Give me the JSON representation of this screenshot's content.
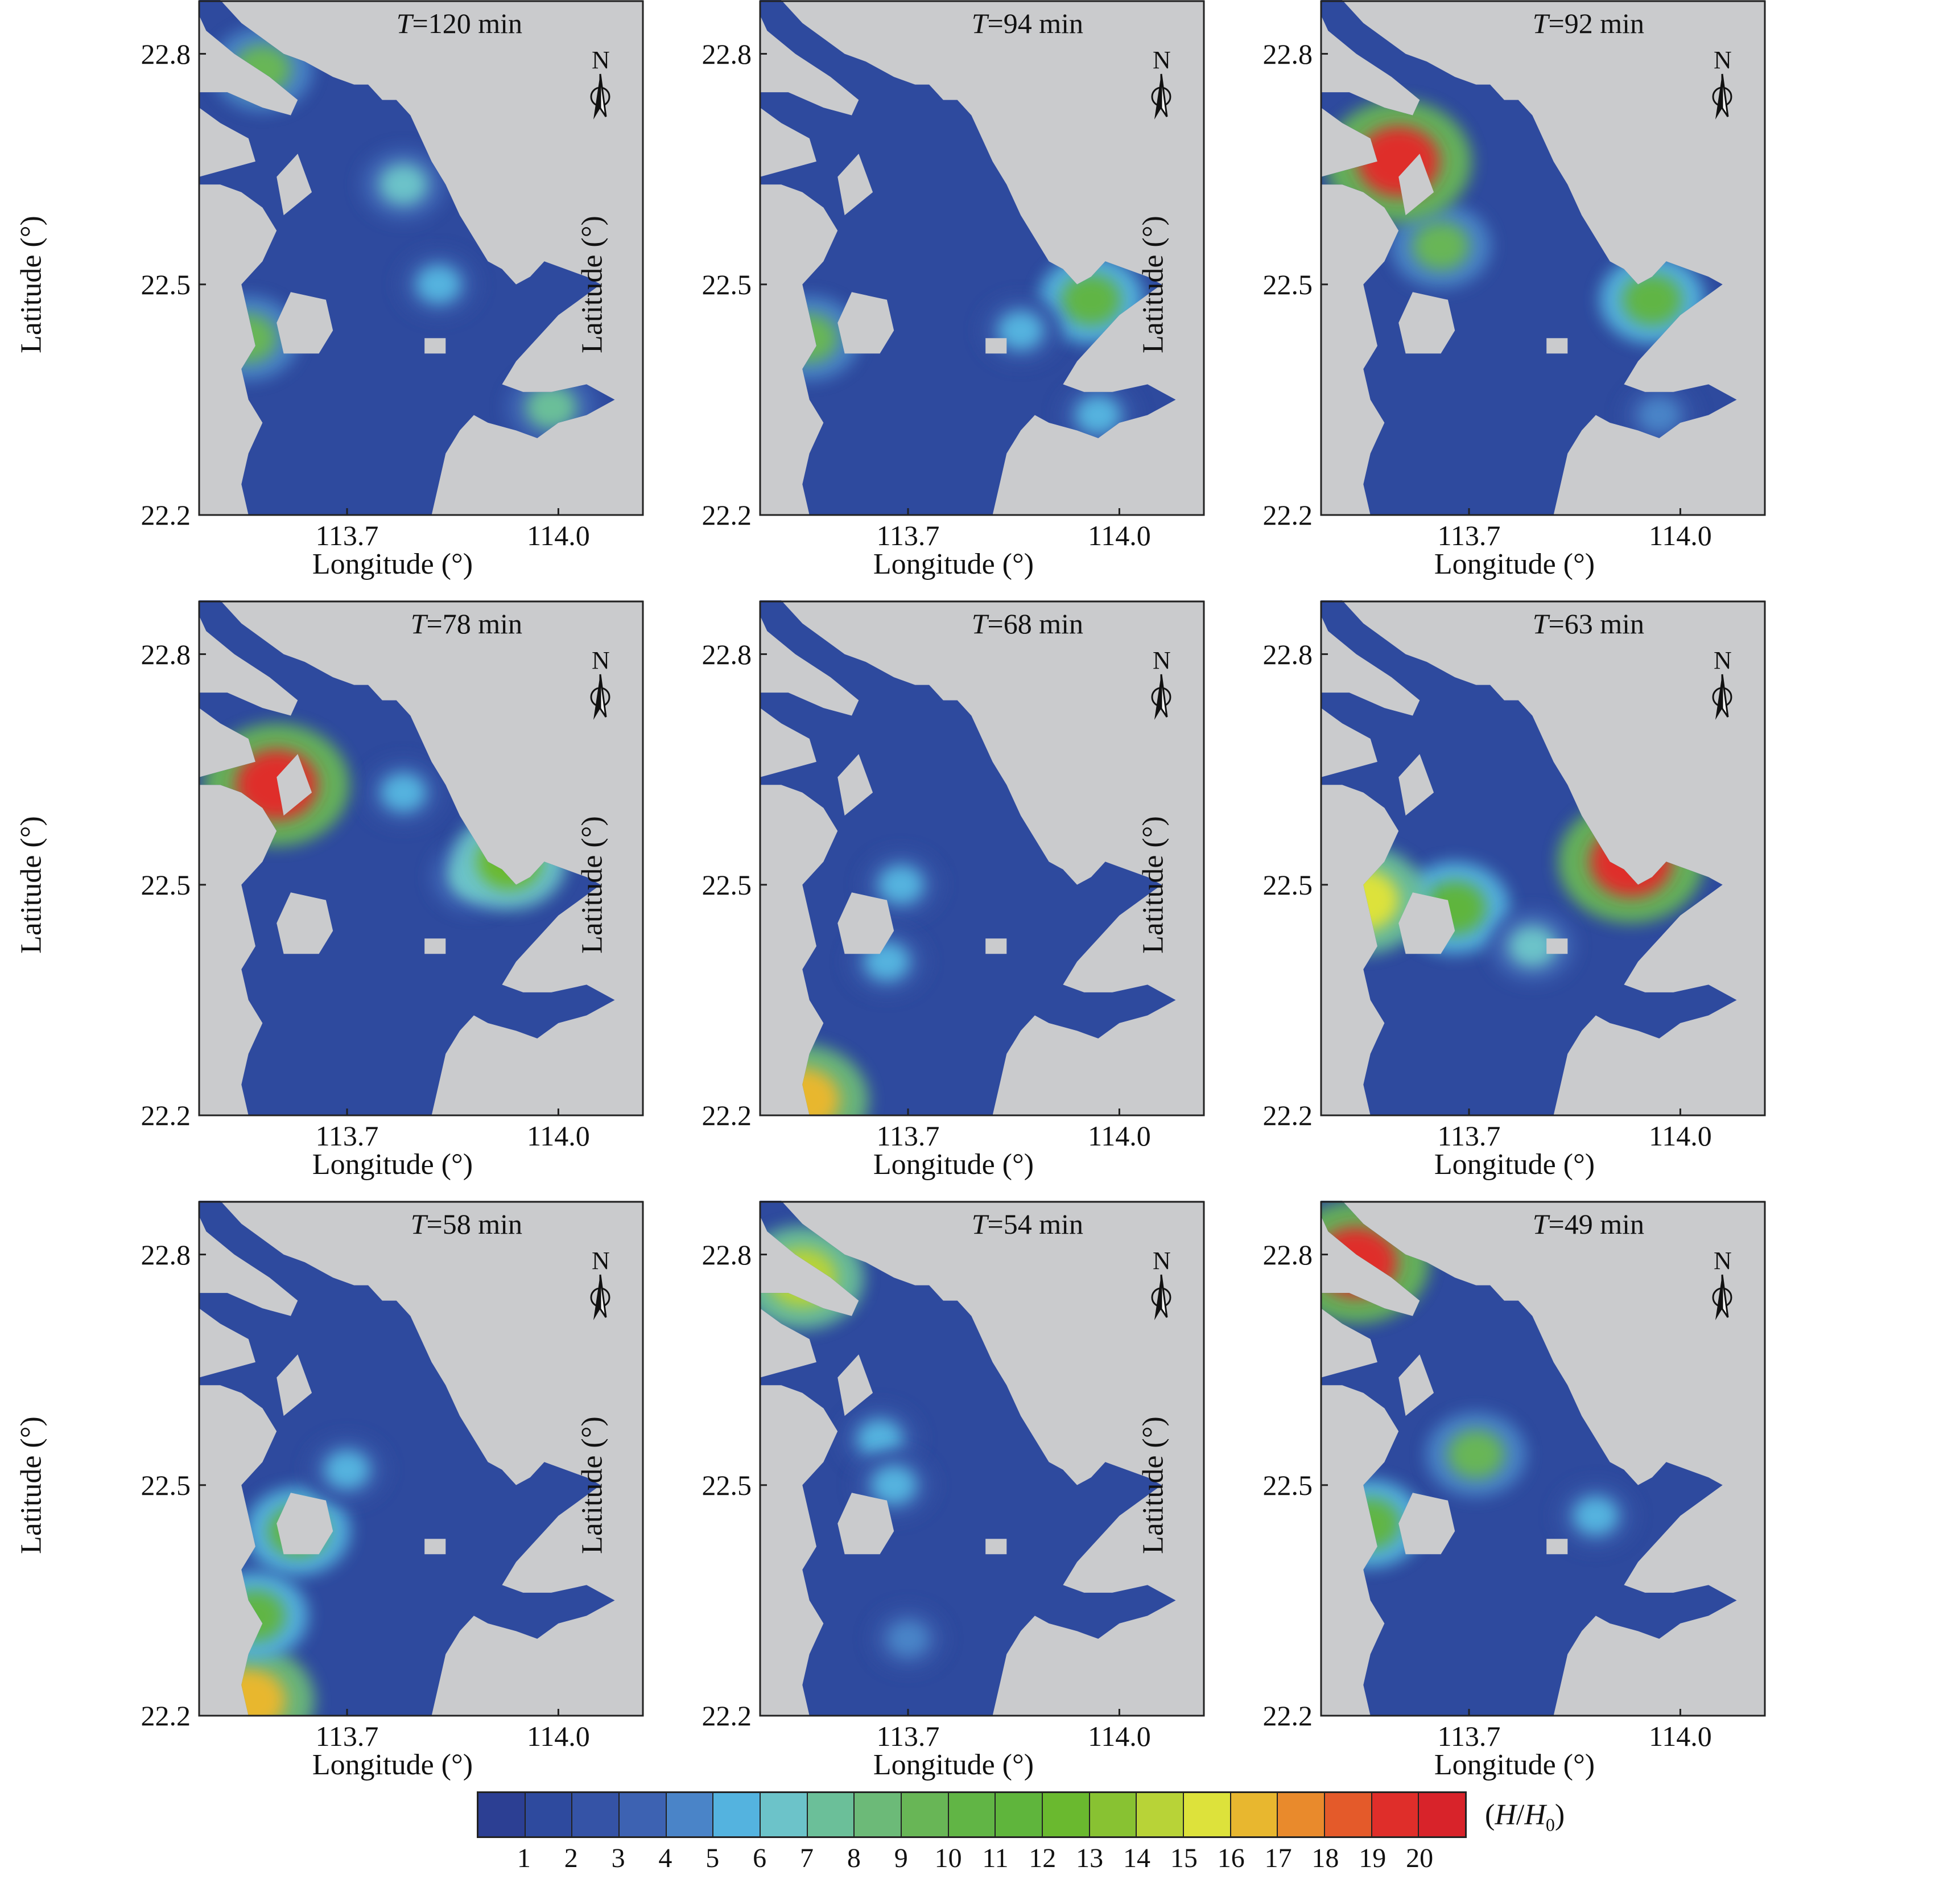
{
  "axis": {
    "xlabel": "Longitude (°)",
    "ylabel": "Latitude (°)",
    "yticks": [
      "22.8",
      "22.5",
      "22.2"
    ],
    "xticks": [
      "113.7",
      "114.0"
    ]
  },
  "panels": [
    {
      "time": "120 min",
      "hotspots": [
        {
          "lon": 113.78,
          "lat": 22.63,
          "level": 6
        },
        {
          "lon": 113.83,
          "lat": 22.5,
          "level": 5
        },
        {
          "lon": 113.99,
          "lat": 22.34,
          "level": 7
        },
        {
          "lon": 113.58,
          "lat": 22.78,
          "level": 9
        },
        {
          "lon": 113.56,
          "lat": 22.43,
          "level": 9
        }
      ]
    },
    {
      "time": "94 min",
      "hotspots": [
        {
          "lon": 113.96,
          "lat": 22.48,
          "level": 10
        },
        {
          "lon": 113.97,
          "lat": 22.33,
          "level": 5
        },
        {
          "lon": 113.56,
          "lat": 22.43,
          "level": 9
        },
        {
          "lon": 113.86,
          "lat": 22.44,
          "level": 5
        }
      ]
    },
    {
      "time": "92 min",
      "hotspots": [
        {
          "lon": 113.66,
          "lat": 22.55,
          "level": 9
        },
        {
          "lon": 113.96,
          "lat": 22.48,
          "level": 10
        },
        {
          "lon": 113.6,
          "lat": 22.66,
          "level": 19
        },
        {
          "lon": 113.97,
          "lat": 22.33,
          "level": 4
        }
      ]
    },
    {
      "time": "78 min",
      "hotspots": [
        {
          "lon": 113.78,
          "lat": 22.62,
          "level": 5
        },
        {
          "lon": 113.88,
          "lat": 22.51,
          "level": 6
        },
        {
          "lon": 113.6,
          "lat": 22.63,
          "level": 19
        },
        {
          "lon": 113.93,
          "lat": 22.53,
          "level": 12
        }
      ]
    },
    {
      "time": "68 min",
      "hotspots": [
        {
          "lon": 113.69,
          "lat": 22.5,
          "level": 5
        },
        {
          "lon": 113.67,
          "lat": 22.4,
          "level": 5
        },
        {
          "lon": 113.55,
          "lat": 22.22,
          "level": 16
        }
      ]
    },
    {
      "time": "63 min",
      "hotspots": [
        {
          "lon": 113.68,
          "lat": 22.47,
          "level": 11
        },
        {
          "lon": 113.79,
          "lat": 22.42,
          "level": 6
        },
        {
          "lon": 113.93,
          "lat": 22.53,
          "level": 19
        },
        {
          "lon": 113.55,
          "lat": 22.48,
          "level": 15
        }
      ]
    },
    {
      "time": "58 min",
      "hotspots": [
        {
          "lon": 113.63,
          "lat": 22.44,
          "level": 10
        },
        {
          "lon": 113.7,
          "lat": 22.52,
          "level": 5
        },
        {
          "lon": 113.56,
          "lat": 22.22,
          "level": 16
        },
        {
          "lon": 113.57,
          "lat": 22.33,
          "level": 10
        }
      ]
    },
    {
      "time": "54 min",
      "hotspots": [
        {
          "lon": 113.66,
          "lat": 22.56,
          "level": 5
        },
        {
          "lon": 113.68,
          "lat": 22.5,
          "level": 5
        },
        {
          "lon": 113.7,
          "lat": 22.3,
          "level": 4
        },
        {
          "lon": 113.55,
          "lat": 22.77,
          "level": 14
        }
      ]
    },
    {
      "time": "49 min",
      "hotspots": [
        {
          "lon": 113.71,
          "lat": 22.54,
          "level": 9
        },
        {
          "lon": 113.56,
          "lat": 22.45,
          "level": 10
        },
        {
          "lon": 113.88,
          "lat": 22.46,
          "level": 5
        },
        {
          "lon": 113.54,
          "lat": 22.79,
          "level": 19
        }
      ]
    }
  ],
  "legend": {
    "unit_prefix": "(",
    "unit_H": "H",
    "unit_slash": "/",
    "unit_H0": "H",
    "unit_sub": "0",
    "unit_suffix": ")",
    "ticks": [
      "1",
      "2",
      "3",
      "4",
      "5",
      "6",
      "7",
      "8",
      "9",
      "10",
      "11",
      "12",
      "13",
      "14",
      "15",
      "16",
      "17",
      "18",
      "19",
      "20"
    ],
    "colors": [
      "#2e4a9e",
      "#3553a6",
      "#3d62b2",
      "#4a84c8",
      "#54b3df",
      "#6cc3c9",
      "#6bbf99",
      "#6cba78",
      "#68b656",
      "#61b545",
      "#5fb53c",
      "#6ab92f",
      "#88c232",
      "#b8d337",
      "#dde23b",
      "#e8b72f",
      "#e98a2c",
      "#e45a2a",
      "#df2e2a",
      "#d8232a"
    ],
    "zero_color": "#2c3f93"
  },
  "map": {
    "land_color": "#cacbcd",
    "water_color": "#2e4a9e"
  },
  "north_label": "N",
  "time_prefix": "T",
  "time_eq": "="
}
